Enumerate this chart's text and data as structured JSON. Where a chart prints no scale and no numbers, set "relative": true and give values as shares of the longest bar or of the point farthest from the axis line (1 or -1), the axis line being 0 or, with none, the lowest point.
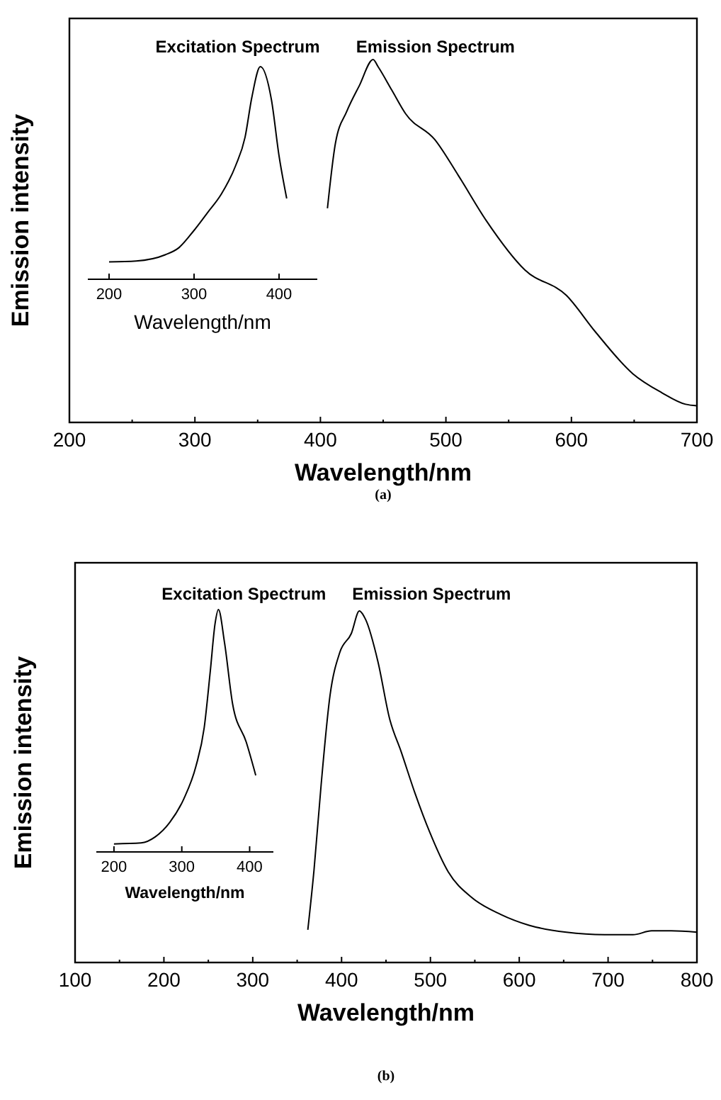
{
  "chart_data": [
    {
      "type": "line",
      "relative": true,
      "xlabel": "Wavelength/nm",
      "ylabel": "Emission intensity",
      "annotations": [
        "(a)"
      ],
      "xlim": [
        200,
        700
      ],
      "xticks": [
        200,
        {
          "value": 250,
          "label": null
        },
        300,
        {
          "value": 350,
          "label": null
        },
        400,
        {
          "value": 450,
          "label": null
        },
        500,
        {
          "value": 550,
          "label": null
        },
        600,
        {
          "value": 650,
          "label": null
        },
        700
      ],
      "series": [
        {
          "name": "Emission Spectrum",
          "color": "#000000",
          "x": [
            405.6,
            412,
            421,
            431,
            442,
            446,
            457,
            468,
            491,
            510,
            532,
            563,
            596,
            619,
            649,
            672,
            691,
            700
          ],
          "values": [
            0.59,
            0.77,
            0.857,
            0.928,
            1.0,
            0.98,
            0.915,
            0.85,
            0.78,
            0.68,
            0.557,
            0.42,
            0.35,
            0.25,
            0.134,
            0.082,
            0.05,
            0.046
          ]
        }
      ]
    },
    {
      "type": "line",
      "relative": true,
      "xlabel": "Wavelength/nm",
      "xlim": [
        175,
        445
      ],
      "xticks": [
        200,
        300,
        400
      ],
      "series": [
        {
          "name": "Excitation Spectrum",
          "color": "#000000",
          "x": [
            200,
            232,
            266,
            282,
            299,
            316,
            332,
            349,
            360,
            368,
            378,
            391,
            400,
            409
          ],
          "values": [
            0.082,
            0.086,
            0.115,
            0.148,
            0.225,
            0.314,
            0.4,
            0.535,
            0.668,
            0.856,
            1.0,
            0.845,
            0.58,
            0.38
          ]
        }
      ]
    },
    {
      "type": "line",
      "relative": true,
      "xlabel": "Wavelength/nm",
      "ylabel": "Emission intensity",
      "annotations": [
        "(b)"
      ],
      "xlim": [
        100,
        800
      ],
      "xticks": [
        100,
        {
          "value": 150,
          "label": null
        },
        200,
        {
          "value": 250,
          "label": null
        },
        300,
        {
          "value": 350,
          "label": null
        },
        400,
        {
          "value": 450,
          "label": null
        },
        500,
        {
          "value": 550,
          "label": null
        },
        600,
        {
          "value": 650,
          "label": null
        },
        700,
        {
          "value": 750,
          "label": null
        },
        800
      ],
      "series": [
        {
          "name": "Emission Spectrum",
          "color": "#000000",
          "x": [
            362,
            369,
            377,
            387,
            398,
            411,
            420,
            427,
            441,
            454,
            467,
            483,
            499,
            520,
            547,
            579,
            611,
            653,
            696,
            728,
            749,
            771,
            800
          ],
          "values": [
            0.093,
            0.264,
            0.506,
            0.76,
            0.882,
            0.936,
            1.0,
            0.976,
            0.855,
            0.694,
            0.6,
            0.479,
            0.372,
            0.258,
            0.184,
            0.137,
            0.106,
            0.086,
            0.079,
            0.079,
            0.09,
            0.09,
            0.086
          ]
        }
      ]
    },
    {
      "type": "line",
      "relative": true,
      "xlabel": "Wavelength/nm",
      "xlim": [
        174,
        435
      ],
      "xticks": [
        200,
        300,
        400
      ],
      "series": [
        {
          "name": "Excitation Spectrum",
          "color": "#000000",
          "x": [
            200,
            240,
            261,
            282,
            303,
            321,
            333,
            342,
            349,
            354,
            363,
            375,
            395,
            409
          ],
          "values": [
            0.033,
            0.037,
            0.0625,
            0.121,
            0.219,
            0.355,
            0.512,
            0.746,
            0.941,
            1.0,
            0.863,
            0.609,
            0.453,
            0.316
          ]
        }
      ]
    }
  ]
}
